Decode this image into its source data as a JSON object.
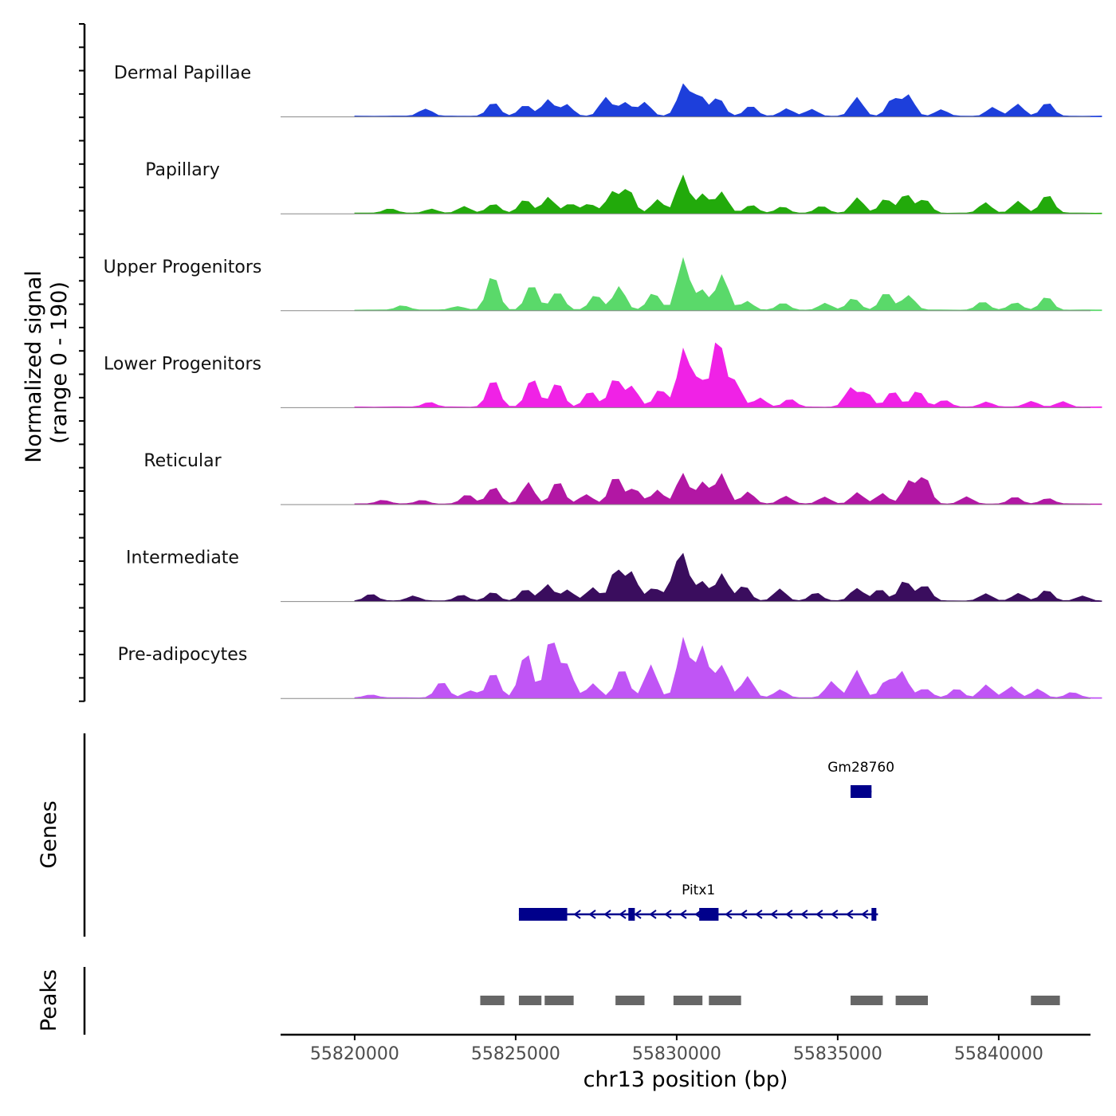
{
  "chart_data": {
    "type": "area",
    "title": "",
    "ylabel_line1": "Normalized signal",
    "ylabel_line2": "(range 0 - 190)",
    "ylim": [
      0,
      190
    ],
    "xlabel": "chr13 position (bp)",
    "xlim": [
      55817700,
      55842850
    ],
    "x_ticks": [
      55820000,
      55825000,
      55830000,
      55835000,
      55840000
    ],
    "x_tick_labels": [
      "55820000",
      "55825000",
      "55830000",
      "55835000",
      "55840000"
    ],
    "x_start": 55820000,
    "x_end": 55843200,
    "bin_size": 200,
    "series": [
      {
        "name": "Dermal Papillae",
        "color": "#1d3fdb",
        "peaks": [
          [
            55822200,
            20
          ],
          [
            55824300,
            30
          ],
          [
            55825300,
            30
          ],
          [
            55826000,
            35
          ],
          [
            55826600,
            28
          ],
          [
            55827800,
            40
          ],
          [
            55828400,
            38
          ],
          [
            55829000,
            30
          ],
          [
            55830200,
            80
          ],
          [
            55830700,
            45
          ],
          [
            55831300,
            45
          ],
          [
            55832300,
            22
          ],
          [
            55833400,
            18
          ],
          [
            55834200,
            15
          ],
          [
            55835600,
            40
          ],
          [
            55836700,
            40
          ],
          [
            55837200,
            45
          ],
          [
            55838200,
            15
          ],
          [
            55839800,
            20
          ],
          [
            55840600,
            28
          ],
          [
            55841500,
            30
          ]
        ]
      },
      {
        "name": "Papillary",
        "color": "#22aa0b",
        "peaks": [
          [
            55821100,
            12
          ],
          [
            55822400,
            10
          ],
          [
            55823400,
            14
          ],
          [
            55824300,
            25
          ],
          [
            55825300,
            30
          ],
          [
            55826000,
            40
          ],
          [
            55826700,
            20
          ],
          [
            55827300,
            25
          ],
          [
            55828000,
            45
          ],
          [
            55828500,
            55
          ],
          [
            55829400,
            30
          ],
          [
            55830200,
            90
          ],
          [
            55830800,
            45
          ],
          [
            55831400,
            45
          ],
          [
            55832300,
            20
          ],
          [
            55833300,
            15
          ],
          [
            55834500,
            15
          ],
          [
            55835600,
            35
          ],
          [
            55836500,
            35
          ],
          [
            55837100,
            45
          ],
          [
            55837700,
            30
          ],
          [
            55839600,
            25
          ],
          [
            55840600,
            25
          ],
          [
            55841500,
            50
          ]
        ]
      },
      {
        "name": "Upper Progenitors",
        "color": "#5ad96a",
        "peaks": [
          [
            55821500,
            12
          ],
          [
            55823200,
            10
          ],
          [
            55824300,
            80
          ],
          [
            55825500,
            55
          ],
          [
            55826300,
            50
          ],
          [
            55827500,
            35
          ],
          [
            55828200,
            55
          ],
          [
            55829300,
            45
          ],
          [
            55830200,
            110
          ],
          [
            55830800,
            50
          ],
          [
            55831400,
            80
          ],
          [
            55832200,
            20
          ],
          [
            55833300,
            15
          ],
          [
            55834600,
            15
          ],
          [
            55835500,
            30
          ],
          [
            55836500,
            38
          ],
          [
            55837200,
            40
          ],
          [
            55839500,
            18
          ],
          [
            55840500,
            20
          ],
          [
            55841500,
            30
          ]
        ]
      },
      {
        "name": "Lower Progenitors",
        "color": "#f022e6",
        "peaks": [
          [
            55822300,
            12
          ],
          [
            55824300,
            60
          ],
          [
            55825500,
            70
          ],
          [
            55826300,
            55
          ],
          [
            55827300,
            35
          ],
          [
            55828100,
            70
          ],
          [
            55828600,
            50
          ],
          [
            55829500,
            40
          ],
          [
            55830200,
            140
          ],
          [
            55830700,
            60
          ],
          [
            55831300,
            175
          ],
          [
            55831800,
            60
          ],
          [
            55832600,
            20
          ],
          [
            55833500,
            18
          ],
          [
            55835400,
            40
          ],
          [
            55835900,
            35
          ],
          [
            55836700,
            35
          ],
          [
            55837500,
            40
          ],
          [
            55838300,
            15
          ],
          [
            55839600,
            12
          ],
          [
            55841000,
            15
          ],
          [
            55842000,
            12
          ]
        ]
      },
      {
        "name": "Reticular",
        "color": "#b217a4",
        "peaks": [
          [
            55820900,
            10
          ],
          [
            55822100,
            8
          ],
          [
            55823500,
            20
          ],
          [
            55824300,
            45
          ],
          [
            55825400,
            50
          ],
          [
            55826300,
            50
          ],
          [
            55827200,
            25
          ],
          [
            55828100,
            60
          ],
          [
            55828700,
            40
          ],
          [
            55829400,
            30
          ],
          [
            55830200,
            75
          ],
          [
            55830800,
            50
          ],
          [
            55831400,
            65
          ],
          [
            55832200,
            30
          ],
          [
            55833400,
            20
          ],
          [
            55834600,
            15
          ],
          [
            55835600,
            25
          ],
          [
            55836400,
            25
          ],
          [
            55837200,
            50
          ],
          [
            55837700,
            60
          ],
          [
            55839000,
            15
          ],
          [
            55840500,
            15
          ],
          [
            55841500,
            15
          ]
        ]
      },
      {
        "name": "Intermediate",
        "color": "#3a0d5e",
        "peaks": [
          [
            55820500,
            15
          ],
          [
            55821800,
            12
          ],
          [
            55823300,
            15
          ],
          [
            55824300,
            20
          ],
          [
            55825300,
            25
          ],
          [
            55826000,
            40
          ],
          [
            55826600,
            25
          ],
          [
            55827400,
            30
          ],
          [
            55828100,
            75
          ],
          [
            55828600,
            60
          ],
          [
            55829300,
            35
          ],
          [
            55829900,
            40
          ],
          [
            55830200,
            90
          ],
          [
            55830800,
            50
          ],
          [
            55831400,
            60
          ],
          [
            55832100,
            35
          ],
          [
            55833200,
            25
          ],
          [
            55834300,
            20
          ],
          [
            55835600,
            35
          ],
          [
            55836300,
            25
          ],
          [
            55837100,
            55
          ],
          [
            55837700,
            35
          ],
          [
            55839600,
            15
          ],
          [
            55840600,
            18
          ],
          [
            55841500,
            25
          ],
          [
            55842600,
            10
          ]
        ]
      },
      {
        "name": "Pre-adipocytes",
        "color": "#c055f5",
        "peaks": [
          [
            55820500,
            8
          ],
          [
            55822700,
            35
          ],
          [
            55823600,
            20
          ],
          [
            55824300,
            55
          ],
          [
            55825300,
            120
          ],
          [
            55826100,
            130
          ],
          [
            55826600,
            85
          ],
          [
            55827400,
            30
          ],
          [
            55828300,
            80
          ],
          [
            55829200,
            70
          ],
          [
            55830200,
            140
          ],
          [
            55830800,
            110
          ],
          [
            55831400,
            90
          ],
          [
            55832200,
            45
          ],
          [
            55833200,
            20
          ],
          [
            55834800,
            40
          ],
          [
            55835600,
            60
          ],
          [
            55836500,
            40
          ],
          [
            55837000,
            55
          ],
          [
            55837700,
            25
          ],
          [
            55838700,
            20
          ],
          [
            55839600,
            30
          ],
          [
            55840400,
            25
          ],
          [
            55841200,
            20
          ],
          [
            55842300,
            15
          ]
        ]
      }
    ],
    "genes": [
      {
        "name": "Gm28760",
        "start": 55835400,
        "end": 55836050,
        "exons": [
          [
            55835400,
            55836050
          ]
        ]
      },
      {
        "name": "Pitx1",
        "start": 55825100,
        "end": 55836250,
        "exons": [
          [
            55825100,
            55826600
          ],
          [
            55828500,
            55828700
          ],
          [
            55830700,
            55831300
          ],
          [
            55836050,
            55836200
          ]
        ]
      }
    ],
    "peaks_track": [
      [
        55823900,
        55824650
      ],
      [
        55825100,
        55825800
      ],
      [
        55825900,
        55826800
      ],
      [
        55828100,
        55829000
      ],
      [
        55829900,
        55830800
      ],
      [
        55831000,
        55832000
      ],
      [
        55835400,
        55836400
      ],
      [
        55836800,
        55837800
      ],
      [
        55841000,
        55841900
      ]
    ],
    "track_labels": {
      "genes": "Genes",
      "peaks": "Peaks"
    }
  }
}
